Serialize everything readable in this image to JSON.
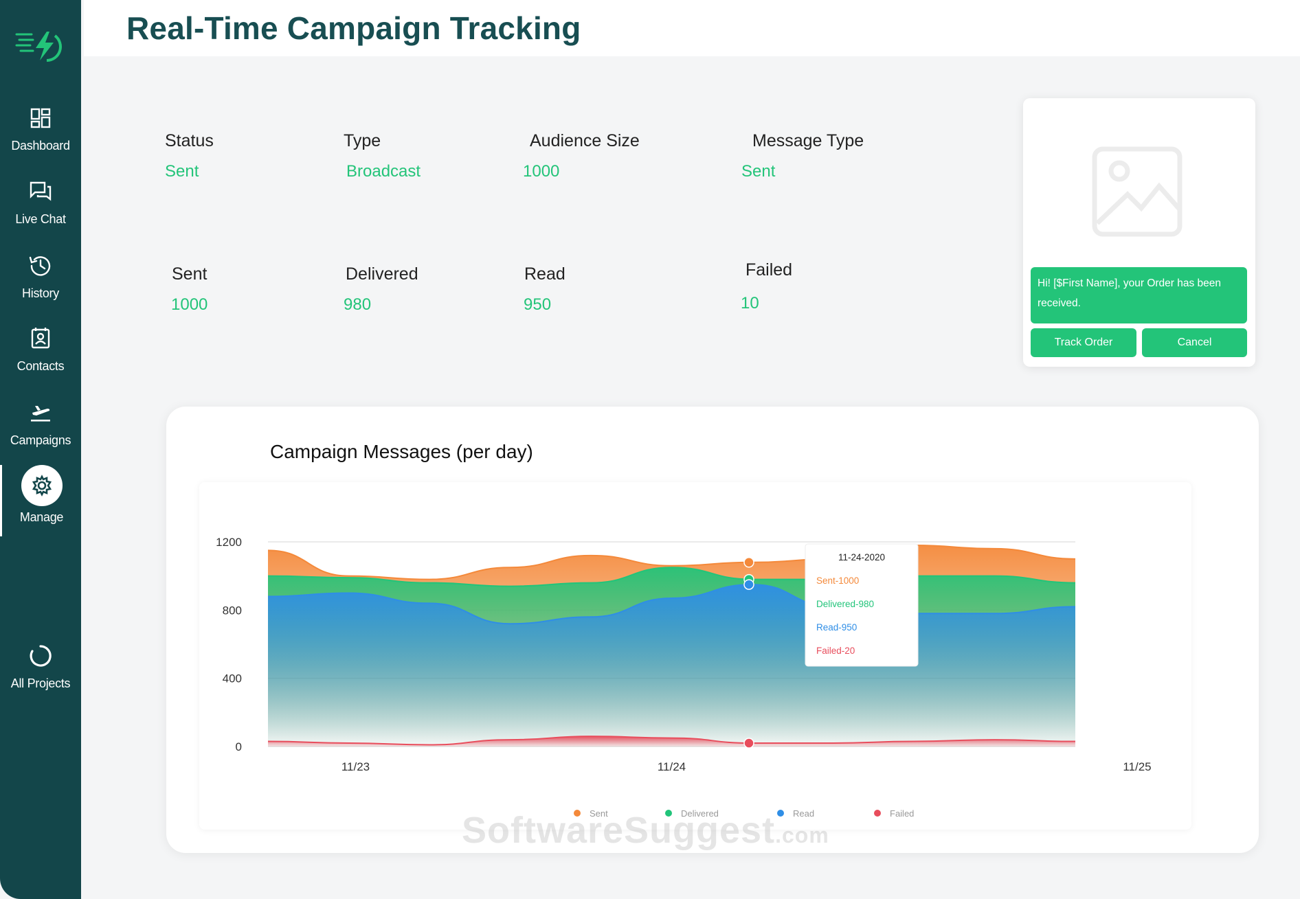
{
  "page": {
    "title": "Real-Time Campaign Tracking"
  },
  "sidebar": {
    "items": [
      {
        "label": "Dashboard",
        "icon": "dashboard-icon"
      },
      {
        "label": "Live Chat",
        "icon": "chat-icon"
      },
      {
        "label": "History",
        "icon": "history-icon"
      },
      {
        "label": "Contacts",
        "icon": "contacts-icon"
      },
      {
        "label": "Campaigns",
        "icon": "plane-icon"
      },
      {
        "label": "Manage",
        "icon": "gear-icon",
        "active": true
      },
      {
        "label": "All Projects",
        "icon": "ring-icon"
      }
    ]
  },
  "campaign": {
    "status_label": "Status",
    "status": "Sent",
    "type_label": "Type",
    "type": "Broadcast",
    "audience_label": "Audience Size",
    "audience": "1000",
    "message_type_label": "Message Type",
    "message_type": "Sent",
    "sent_label": "Sent",
    "sent": "1000",
    "delivered_label": "Delivered",
    "delivered": "980",
    "read_label": "Read",
    "read": "950",
    "failed_label": "Failed",
    "failed": "10"
  },
  "preview": {
    "message": "Hi! [$First Name], your Order has been received.",
    "track_label": "Track Order",
    "cancel_label": "Cancel"
  },
  "chart_data": {
    "type": "area",
    "title": "Campaign Messages (per day)",
    "ylim": [
      0,
      1200
    ],
    "yticks": [
      0,
      400,
      800,
      1200
    ],
    "xticks": [
      "11/23",
      "11/24",
      "11/25"
    ],
    "grid": true,
    "legend_position": "bottom",
    "series": [
      {
        "name": "Sent",
        "color": "#f4893a",
        "values": [
          1150,
          1000,
          980,
          1050,
          1120,
          1060,
          1080,
          1100,
          1180,
          1160,
          1100
        ]
      },
      {
        "name": "Delivered",
        "color": "#22c47a",
        "values": [
          1000,
          990,
          960,
          940,
          960,
          1050,
          980,
          980,
          1000,
          1000,
          960
        ]
      },
      {
        "name": "Read",
        "color": "#2f8ee6",
        "values": [
          880,
          900,
          840,
          720,
          760,
          870,
          950,
          820,
          780,
          780,
          820
        ]
      },
      {
        "name": "Failed",
        "color": "#e84d5c",
        "values": [
          30,
          20,
          10,
          40,
          60,
          50,
          20,
          20,
          30,
          40,
          30
        ]
      }
    ],
    "tooltip": {
      "date": "11-24-2020",
      "lines": [
        "Sent-1000",
        "Delivered-980",
        "Read-950",
        "Failed-20"
      ]
    }
  }
}
